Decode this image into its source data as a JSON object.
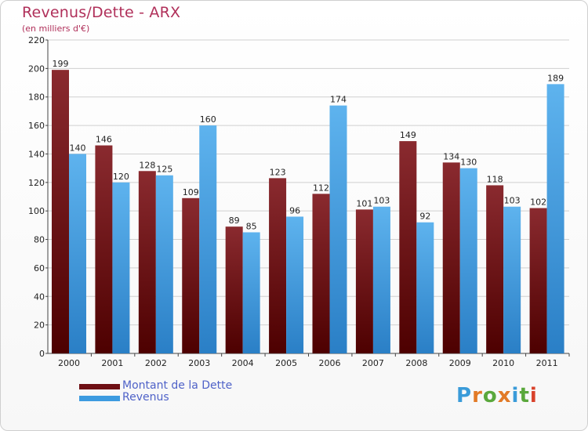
{
  "header": {
    "title": "Revenus/Dette - ARX",
    "subtitle": "(en milliers d'€)"
  },
  "colors": {
    "dette": "#6e0f14",
    "revenus": "#3d9be0",
    "title": "#b0305a",
    "legend_text": "#4f62c8",
    "grid": "#d0d0d0"
  },
  "legend": {
    "dette_label": "Montant de la Dette",
    "revenus_label": "Revenus"
  },
  "logo": {
    "text": "Proxiti"
  },
  "chart_data": {
    "type": "bar",
    "title": "Revenus/Dette - ARX",
    "subtitle": "(en milliers d'€)",
    "categories": [
      "2000",
      "2001",
      "2002",
      "2003",
      "2004",
      "2005",
      "2006",
      "2007",
      "2008",
      "2009",
      "2010",
      "2011"
    ],
    "series": [
      {
        "name": "Montant de la Dette",
        "values": [
          199,
          146,
          128,
          109,
          89,
          123,
          112,
          101,
          149,
          134,
          118,
          102
        ]
      },
      {
        "name": "Revenus",
        "values": [
          140,
          120,
          125,
          160,
          85,
          96,
          174,
          103,
          92,
          130,
          103,
          189
        ]
      }
    ],
    "yticks": [
      0,
      20,
      40,
      60,
      80,
      100,
      120,
      140,
      160,
      180,
      200,
      220
    ],
    "ylim": [
      0,
      220
    ],
    "grid": true,
    "legend_position": "bottom-left",
    "data_labels": true
  }
}
